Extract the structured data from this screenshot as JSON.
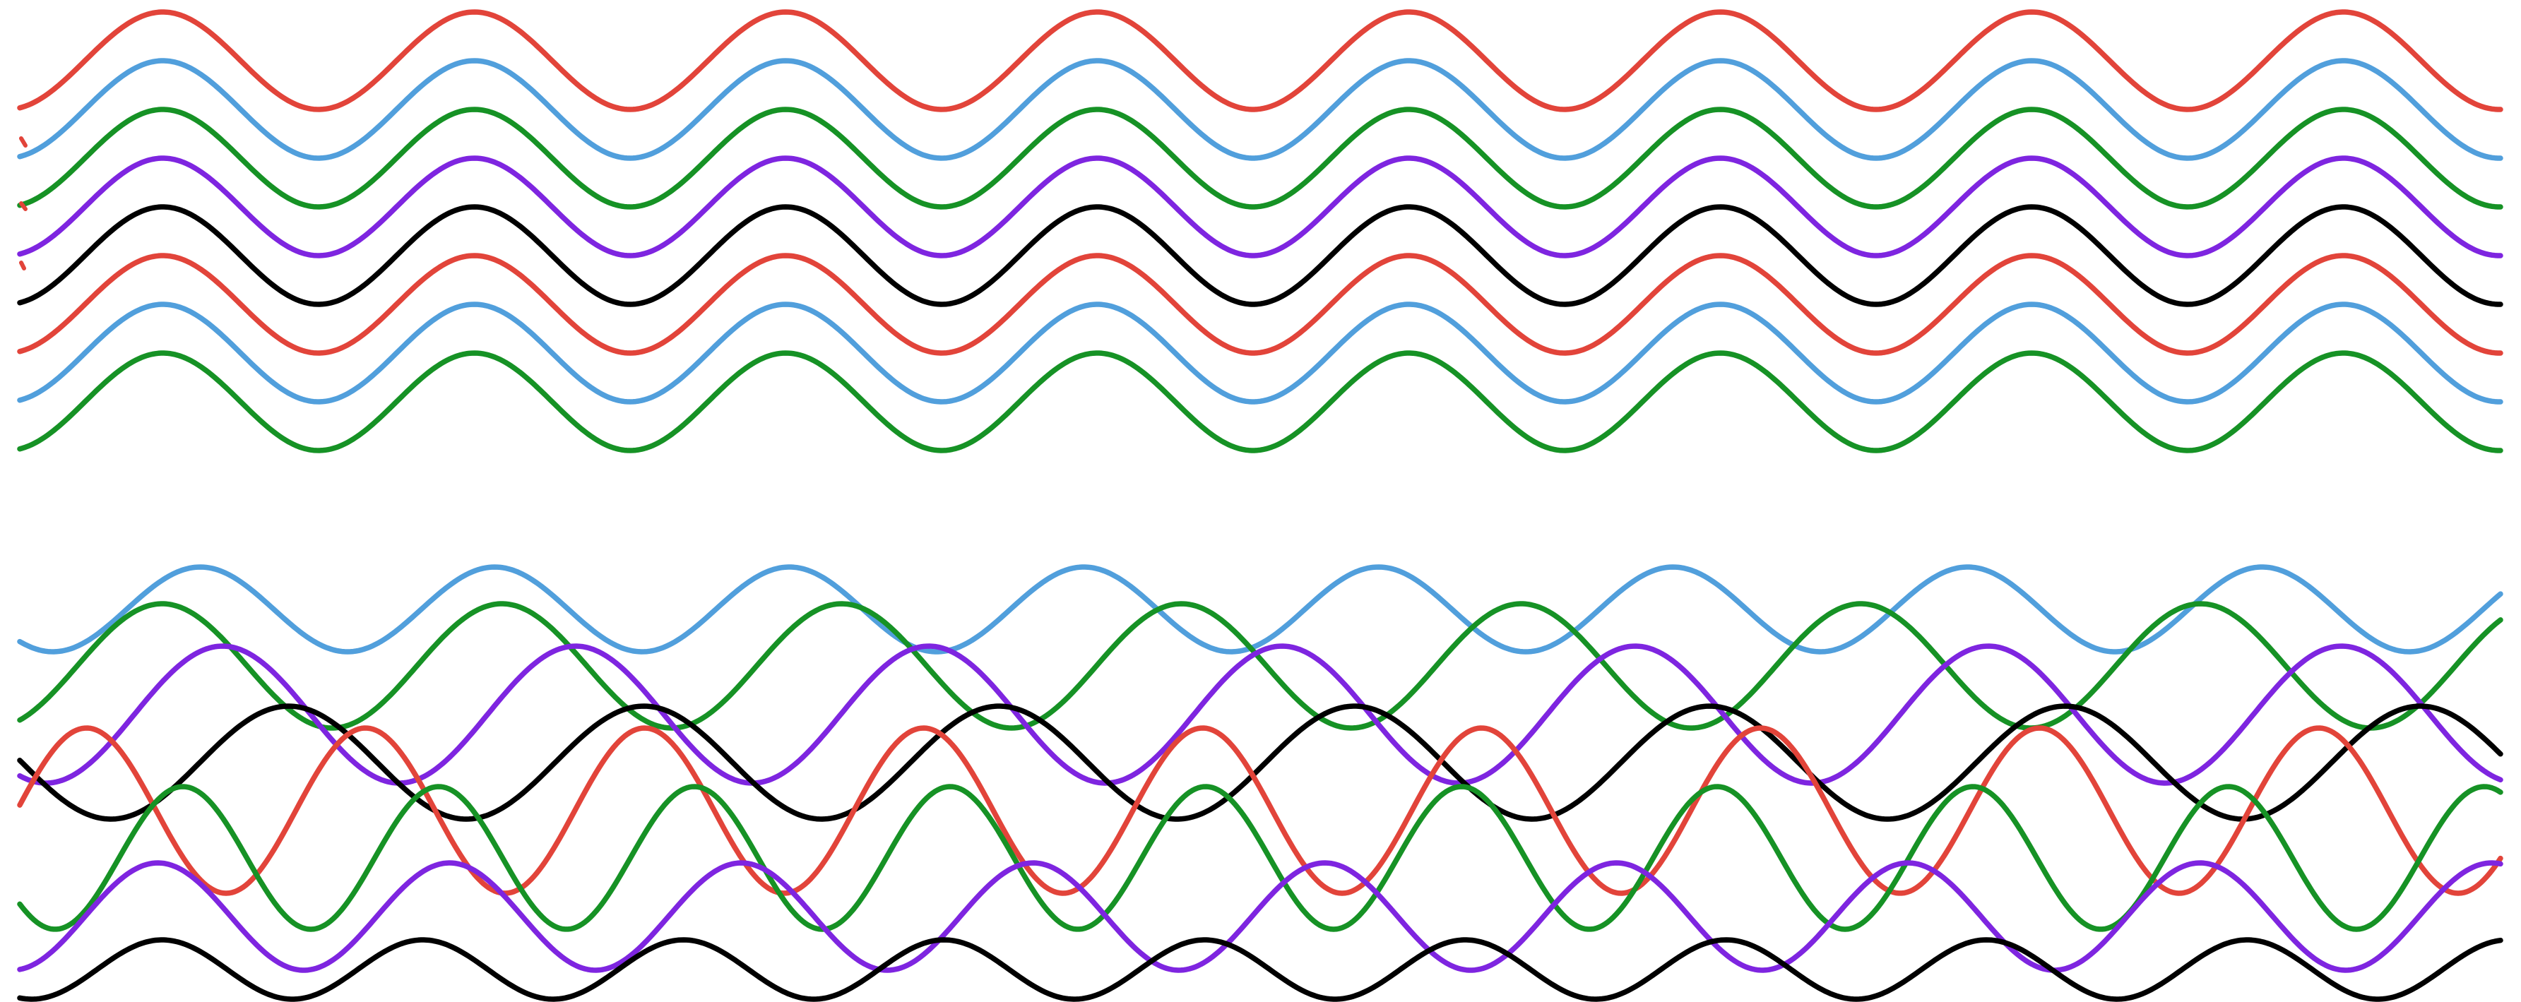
{
  "palette": {
    "red": "#e2443a",
    "blue": "#519fdc",
    "green": "#169225",
    "purple": "#7e25e0",
    "black": "#000000"
  },
  "top_panel": {
    "description_kind": "stack of identical-period sine waves, each phase-shifted",
    "waves": [
      {
        "color": "red"
      },
      {
        "color": "blue"
      },
      {
        "color": "green"
      },
      {
        "color": "purple"
      },
      {
        "color": "black"
      },
      {
        "color": "red"
      },
      {
        "color": "blue"
      },
      {
        "color": "green"
      }
    ]
  },
  "bottom_panel": {
    "description_kind": "waves of differing periods that interleave and cross",
    "waves": [
      {
        "color": "blue"
      },
      {
        "color": "green"
      },
      {
        "color": "purple"
      },
      {
        "color": "black"
      },
      {
        "color": "red"
      },
      {
        "color": "green"
      },
      {
        "color": "purple"
      },
      {
        "color": "black"
      }
    ]
  }
}
